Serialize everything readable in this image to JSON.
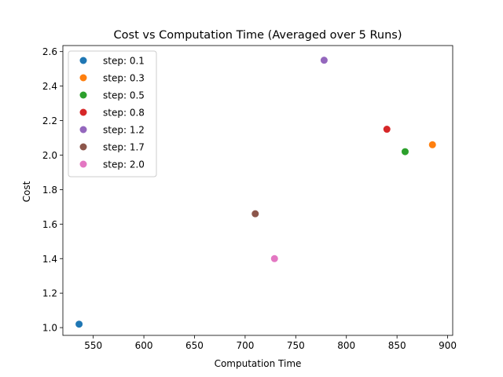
{
  "chart_data": {
    "type": "scatter",
    "title": "Cost vs Computation Time (Averaged over 5 Runs)",
    "xlabel": "Computation Time",
    "ylabel": "Cost",
    "xlim": [
      520,
      905
    ],
    "ylim": [
      0.955,
      2.635
    ],
    "xticks": [
      550,
      600,
      650,
      700,
      750,
      800,
      850,
      900
    ],
    "yticks": [
      1.0,
      1.2,
      1.4,
      1.6,
      1.8,
      2.0,
      2.2,
      2.4,
      2.6
    ],
    "xtick_labels": [
      "550",
      "600",
      "650",
      "700",
      "750",
      "800",
      "850",
      "900"
    ],
    "ytick_labels": [
      "1.0",
      "1.2",
      "1.4",
      "1.6",
      "1.8",
      "2.0",
      "2.2",
      "2.4",
      "2.6"
    ],
    "grid": false,
    "legend_position": "upper-left",
    "series": [
      {
        "name": "step: 0.1",
        "color": "#1f77b4",
        "x": [
          536
        ],
        "y": [
          1.02
        ]
      },
      {
        "name": "step: 0.3",
        "color": "#ff7f0e",
        "x": [
          885
        ],
        "y": [
          2.06
        ]
      },
      {
        "name": "step: 0.5",
        "color": "#2ca02c",
        "x": [
          858
        ],
        "y": [
          2.02
        ]
      },
      {
        "name": "step: 0.8",
        "color": "#d62728",
        "x": [
          840
        ],
        "y": [
          2.15
        ]
      },
      {
        "name": "step: 1.2",
        "color": "#9467bd",
        "x": [
          778
        ],
        "y": [
          2.55
        ]
      },
      {
        "name": "step: 1.7",
        "color": "#8c564b",
        "x": [
          710
        ],
        "y": [
          1.66
        ]
      },
      {
        "name": "step: 2.0",
        "color": "#e377c2",
        "x": [
          729
        ],
        "y": [
          1.4
        ]
      }
    ]
  }
}
